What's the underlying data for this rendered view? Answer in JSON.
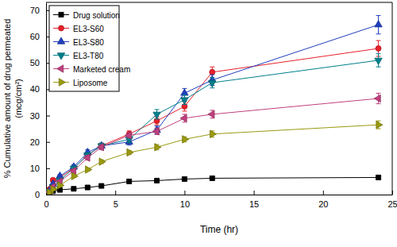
{
  "chart_data": {
    "type": "line",
    "x_label": "Time (hr)",
    "y_label": [
      "% Cumulative amount of drug permeated",
      "(mcg/cm²)"
    ],
    "x": [
      0.25,
      0.5,
      1,
      2,
      3,
      4,
      6,
      8,
      10,
      12,
      24
    ],
    "xlim": [
      0,
      25
    ],
    "xticks": [
      0,
      5,
      10,
      15,
      20,
      25
    ],
    "ylim": [
      0,
      73
    ],
    "yticks": [
      0,
      10,
      20,
      30,
      40,
      50,
      60,
      70
    ],
    "legend": "top-left",
    "series": [
      {
        "name": "Drug solution",
        "color": "#000000",
        "marker": "square",
        "values": [
          0.5,
          1.3,
          1.8,
          2.2,
          2.7,
          3.3,
          5.0,
          5.3,
          5.9,
          6.2,
          6.5
        ],
        "errors": [
          0.2,
          0.2,
          0.2,
          0.3,
          0.3,
          0.3,
          0.4,
          0.4,
          0.5,
          0.5,
          0.6
        ]
      },
      {
        "name": "EL3-S60",
        "color": "#e8202a",
        "marker": "circle",
        "values": [
          2.0,
          5.5,
          6.5,
          10.0,
          15.0,
          18.5,
          23.0,
          28.0,
          33.5,
          46.5,
          55.5
        ],
        "errors": [
          0.3,
          0.5,
          0.6,
          0.8,
          1.0,
          1.0,
          1.2,
          1.5,
          1.8,
          2.0,
          3.0
        ]
      },
      {
        "name": "EL3-S80",
        "color": "#1f3fbf",
        "marker": "triangle-up",
        "values": [
          1.5,
          4.0,
          7.0,
          10.5,
          16.0,
          18.5,
          20.0,
          24.5,
          38.5,
          43.5,
          64.5
        ],
        "errors": [
          0.3,
          0.5,
          0.6,
          0.8,
          1.0,
          1.0,
          1.2,
          1.5,
          1.8,
          2.0,
          3.5
        ]
      },
      {
        "name": "EL3-T80",
        "color": "#00808c",
        "marker": "triangle-down",
        "values": [
          1.2,
          3.0,
          5.5,
          10.0,
          15.0,
          18.5,
          21.0,
          30.5,
          36.0,
          42.5,
          51.0
        ],
        "errors": [
          0.3,
          0.4,
          0.5,
          0.8,
          1.0,
          1.0,
          1.2,
          1.8,
          1.8,
          2.0,
          2.5
        ]
      },
      {
        "name": "Marketed cream",
        "color": "#c0407e",
        "marker": "triangle-left",
        "values": [
          1.0,
          3.0,
          5.0,
          9.0,
          14.0,
          18.0,
          22.5,
          24.0,
          29.0,
          30.5,
          36.5
        ],
        "errors": [
          0.2,
          0.4,
          0.5,
          0.7,
          0.9,
          1.0,
          1.0,
          1.2,
          1.5,
          1.5,
          2.0
        ]
      },
      {
        "name": "Liposome",
        "color": "#9a9a10",
        "marker": "triangle-right",
        "values": [
          0.8,
          2.0,
          3.5,
          7.0,
          9.5,
          12.5,
          16.0,
          18.0,
          21.0,
          23.0,
          26.5
        ],
        "errors": [
          0.2,
          0.3,
          0.4,
          0.5,
          0.6,
          0.7,
          0.8,
          1.0,
          1.0,
          1.2,
          1.5
        ]
      }
    ]
  }
}
